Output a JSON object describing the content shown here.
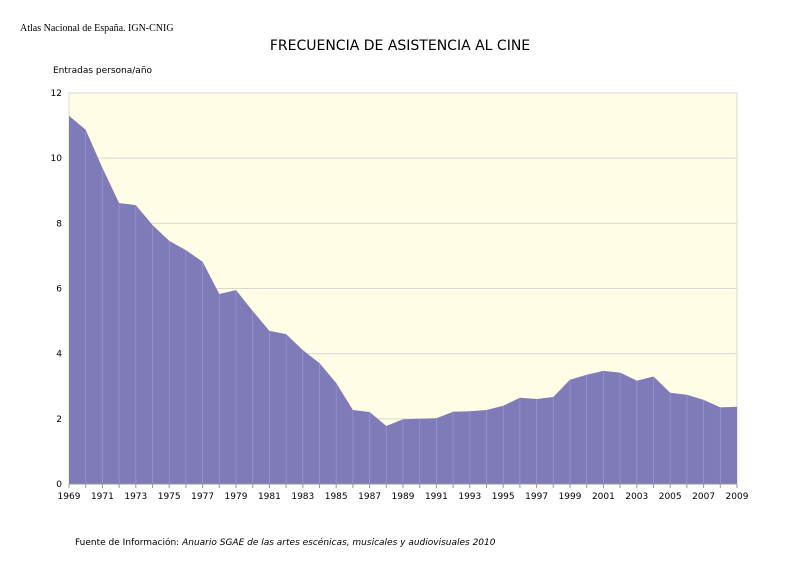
{
  "credit": "Atlas Nacional de España. IGN-CNIG",
  "chart_data": {
    "type": "area",
    "title": "FRECUENCIA DE ASISTENCIA AL CINE",
    "ylabel": "Entradas persona/año",
    "xlabel": "",
    "ylim": [
      0,
      12
    ],
    "yticks": [
      0,
      2,
      4,
      6,
      8,
      10,
      12
    ],
    "xlim": [
      1969,
      2009
    ],
    "xticks": [
      1969,
      1971,
      1973,
      1975,
      1977,
      1979,
      1981,
      1983,
      1985,
      1987,
      1989,
      1991,
      1993,
      1995,
      1997,
      1999,
      2001,
      2003,
      2005,
      2007,
      2009
    ],
    "grid": true,
    "colors": {
      "fill": "#7f7ab8",
      "background": "#fffde6",
      "grid": "#d8d8d0"
    },
    "x": [
      1969,
      1970,
      1971,
      1972,
      1973,
      1974,
      1975,
      1976,
      1977,
      1978,
      1979,
      1980,
      1981,
      1982,
      1983,
      1984,
      1985,
      1986,
      1987,
      1988,
      1989,
      1990,
      1991,
      1992,
      1993,
      1994,
      1995,
      1996,
      1997,
      1998,
      1999,
      2000,
      2001,
      2002,
      2003,
      2004,
      2005,
      2006,
      2007,
      2008,
      2009
    ],
    "values": [
      11.3,
      10.87,
      9.7,
      8.62,
      8.56,
      7.95,
      7.46,
      7.18,
      6.82,
      5.83,
      5.95,
      5.31,
      4.7,
      4.6,
      4.11,
      3.71,
      3.1,
      2.27,
      2.21,
      1.78,
      1.99,
      2.0,
      2.02,
      2.22,
      2.23,
      2.27,
      2.4,
      2.65,
      2.61,
      2.67,
      3.2,
      3.35,
      3.47,
      3.42,
      3.17,
      3.3,
      2.8,
      2.74,
      2.58,
      2.35,
      2.37
    ]
  },
  "source": {
    "prefix": "Fuente de Información: ",
    "title": "Anuario SGAE de las artes escénicas, musicales y audiovisuales 2010"
  }
}
